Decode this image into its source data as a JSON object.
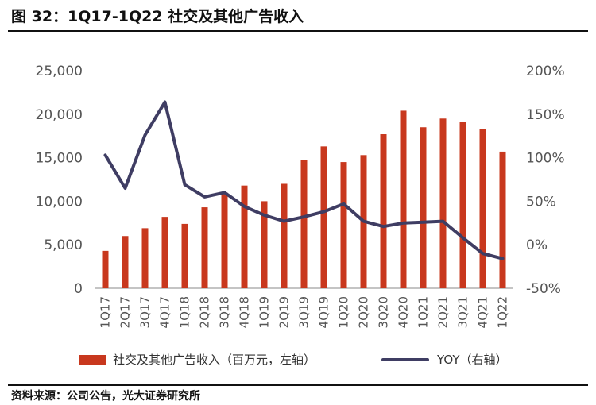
{
  "header": {
    "title": "图 32：1Q17-1Q22 社交及其他广告收入"
  },
  "footer": {
    "source": "资料来源：公司公告，光大证券研究所"
  },
  "colors": {
    "bar": "#c8381e",
    "line": "#3f3d63",
    "axis": "#888888",
    "text": "#555555"
  },
  "chart_data": {
    "type": "bar",
    "categories": [
      "1Q17",
      "2Q17",
      "3Q17",
      "4Q17",
      "1Q18",
      "2Q18",
      "3Q18",
      "4Q18",
      "1Q19",
      "2Q19",
      "3Q19",
      "4Q19",
      "1Q20",
      "2Q20",
      "3Q20",
      "4Q20",
      "1Q21",
      "2Q21",
      "3Q21",
      "4Q21",
      "1Q22"
    ],
    "series": [
      {
        "name": "社交及其他广告收入（百万元，左轴）",
        "type": "bar",
        "axis": "left",
        "values": [
          4300,
          6000,
          6900,
          8200,
          7400,
          9300,
          11000,
          11800,
          10000,
          12000,
          14700,
          16300,
          14500,
          15300,
          17700,
          20400,
          18500,
          19500,
          19100,
          18300,
          15700
        ]
      },
      {
        "name": "YOY（右轴）",
        "type": "line",
        "axis": "right",
        "values": [
          103,
          65,
          126,
          164,
          69,
          55,
          60,
          44,
          34,
          27,
          32,
          38,
          47,
          27,
          21,
          25,
          26,
          27,
          8,
          -10,
          -16
        ]
      }
    ],
    "y_left": {
      "min": 0,
      "max": 25000,
      "ticks": [
        "0",
        "5,000",
        "10,000",
        "15,000",
        "20,000",
        "25,000"
      ]
    },
    "y_right": {
      "min": -50,
      "max": 200,
      "ticks": [
        "-50%",
        "0%",
        "50%",
        "100%",
        "150%",
        "200%"
      ]
    },
    "legend": "bottom"
  }
}
